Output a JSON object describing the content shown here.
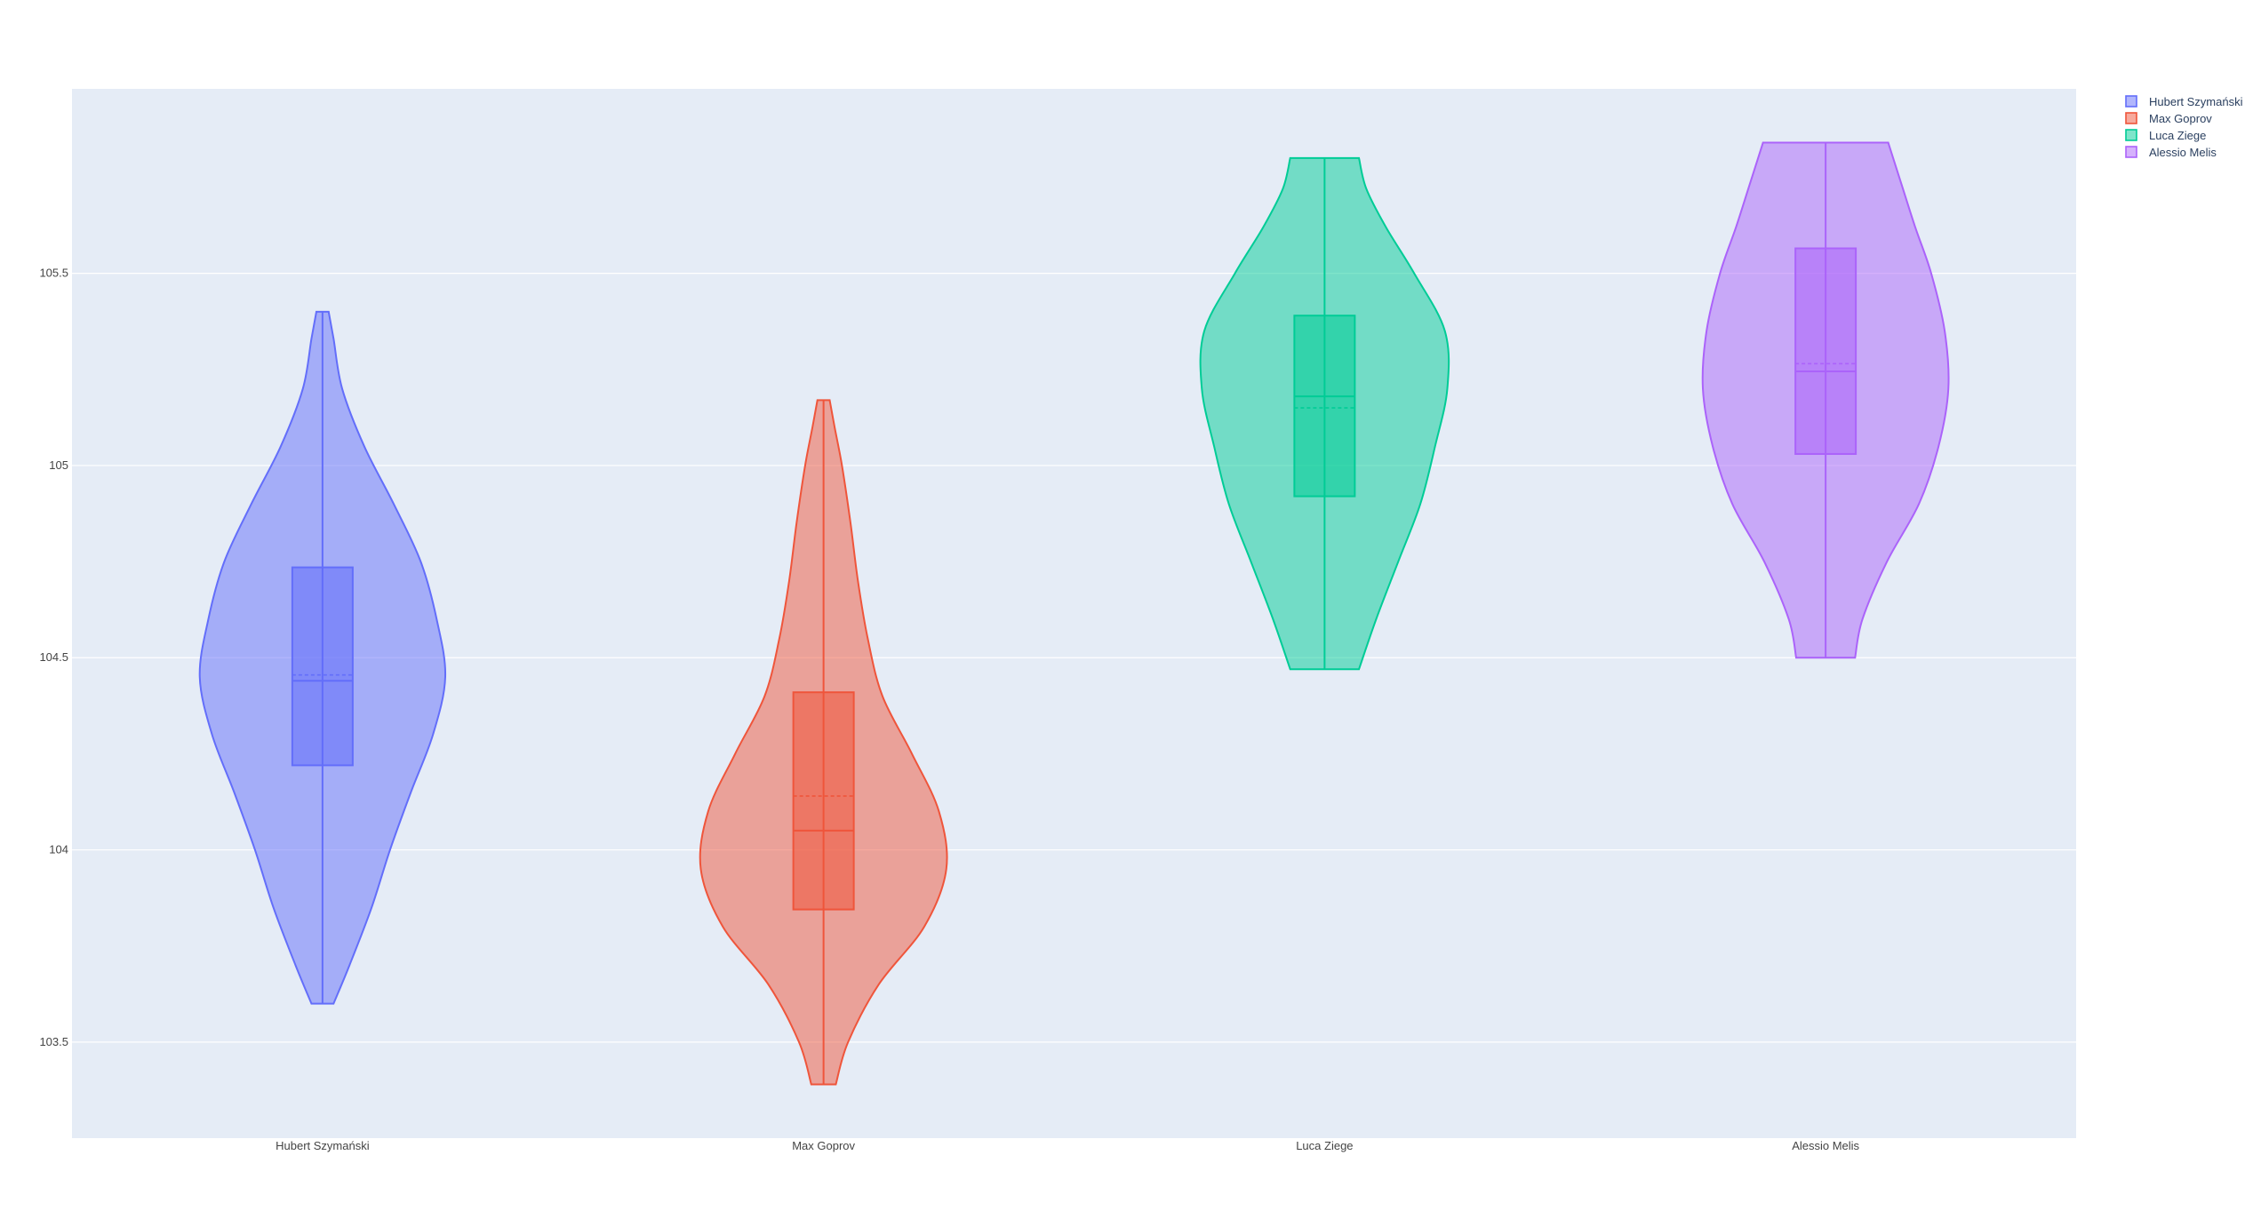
{
  "chart_data": {
    "type": "violin",
    "title": "",
    "xlabel": "",
    "ylabel": "",
    "ylim": [
      103.25,
      105.98
    ],
    "yticks": [
      103.5,
      104,
      104.5,
      105,
      105.5
    ],
    "ytick_labels": [
      "103.5",
      "104",
      "104.5",
      "105",
      "105.5"
    ],
    "grid": true,
    "box_inside": true,
    "meanline": true,
    "legend_position": "top-right",
    "plot_bgcolor": "#E5ECF6",
    "categories": [
      "Hubert Szymański",
      "Max Goprov",
      "Luca Ziege",
      "Alessio Melis"
    ],
    "series": [
      {
        "name": "Hubert Szymański",
        "color": "#636EFA",
        "min": 103.6,
        "q1": 104.22,
        "median": 104.44,
        "mean": 104.455,
        "q3": 104.735,
        "max": 105.4,
        "density": [
          [
            103.6,
            0.09
          ],
          [
            103.7,
            0.22
          ],
          [
            103.85,
            0.4
          ],
          [
            104.0,
            0.55
          ],
          [
            104.15,
            0.72
          ],
          [
            104.3,
            0.9
          ],
          [
            104.45,
            1.0
          ],
          [
            104.6,
            0.93
          ],
          [
            104.75,
            0.8
          ],
          [
            104.9,
            0.58
          ],
          [
            105.05,
            0.34
          ],
          [
            105.2,
            0.16
          ],
          [
            105.33,
            0.09
          ],
          [
            105.4,
            0.05
          ]
        ]
      },
      {
        "name": "Max Goprov",
        "color": "#EF553B",
        "min": 103.39,
        "q1": 103.845,
        "median": 104.05,
        "mean": 104.14,
        "q3": 104.41,
        "max": 105.17,
        "density": [
          [
            103.39,
            0.1
          ],
          [
            103.5,
            0.2
          ],
          [
            103.65,
            0.45
          ],
          [
            103.8,
            0.82
          ],
          [
            103.95,
            1.0
          ],
          [
            104.1,
            0.94
          ],
          [
            104.25,
            0.72
          ],
          [
            104.4,
            0.48
          ],
          [
            104.55,
            0.36
          ],
          [
            104.7,
            0.28
          ],
          [
            104.85,
            0.22
          ],
          [
            105.0,
            0.15
          ],
          [
            105.1,
            0.09
          ],
          [
            105.17,
            0.05
          ]
        ]
      },
      {
        "name": "Luca Ziege",
        "color": "#00CC96",
        "min": 104.47,
        "q1": 104.92,
        "median": 105.18,
        "mean": 105.15,
        "q3": 105.39,
        "max": 105.8,
        "density": [
          [
            104.47,
            0.28
          ],
          [
            104.6,
            0.42
          ],
          [
            104.75,
            0.6
          ],
          [
            104.9,
            0.78
          ],
          [
            105.05,
            0.9
          ],
          [
            105.2,
            1.0
          ],
          [
            105.35,
            0.98
          ],
          [
            105.5,
            0.73
          ],
          [
            105.62,
            0.5
          ],
          [
            105.72,
            0.34
          ],
          [
            105.8,
            0.28
          ]
        ]
      },
      {
        "name": "Alessio Melis",
        "color": "#AB63FA",
        "min": 104.5,
        "q1": 105.03,
        "median": 105.245,
        "mean": 105.265,
        "q3": 105.565,
        "max": 105.84,
        "density": [
          [
            104.5,
            0.24
          ],
          [
            104.6,
            0.3
          ],
          [
            104.75,
            0.5
          ],
          [
            104.9,
            0.76
          ],
          [
            105.05,
            0.92
          ],
          [
            105.2,
            1.0
          ],
          [
            105.35,
            0.97
          ],
          [
            105.5,
            0.86
          ],
          [
            105.62,
            0.73
          ],
          [
            105.73,
            0.62
          ],
          [
            105.84,
            0.51
          ]
        ]
      }
    ]
  }
}
